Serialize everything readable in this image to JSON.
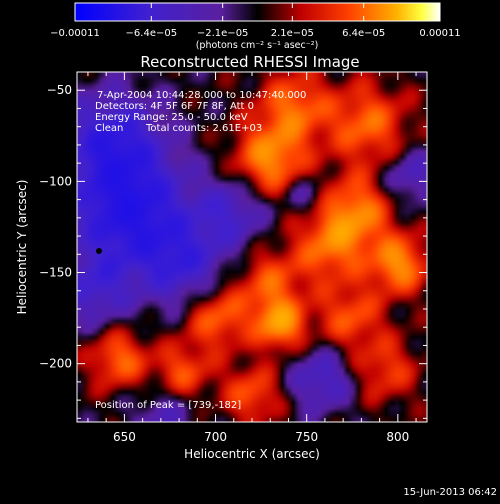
{
  "chart_data": {
    "type": "heatmap",
    "title": "Reconstructed RHESSI Image",
    "xlabel": "Heliocentric X (arcsec)",
    "ylabel": "Heliocentric Y (arcsec)",
    "xlim": [
      624,
      816
    ],
    "ylim": [
      -232,
      -40
    ],
    "x_ticks": [
      "650",
      "700",
      "750",
      "800"
    ],
    "x_tick_values": [
      650,
      700,
      750,
      800
    ],
    "y_ticks": [
      "−50",
      "−100",
      "−150",
      "−200"
    ],
    "y_tick_values": [
      -50,
      -100,
      -150,
      -200
    ],
    "colorbar": {
      "ticks": [
        "−0.00011",
        "−6.4e−05",
        "−2.1e−05",
        "2.1e−05",
        "6.4e−05",
        "0.00011"
      ],
      "tick_values": [
        -0.00011,
        -6.4e-05,
        -2.1e-05,
        2.1e-05,
        6.4e-05,
        0.00011
      ],
      "range": [
        -0.00011,
        0.00011
      ],
      "units": "(photons cm⁻² s⁻¹ asec⁻²)"
    },
    "annotations": {
      "time": "7-Apr-2004 10:44:28.000 to 10:47:40.000",
      "detectors": "Detectors: 4F 5F 6F 7F 8F, Att 0",
      "energy": "Energy Range: 25.0 - 50.0 keV",
      "algorithm": "Clean",
      "counts": "Total counts: 2.61E+03",
      "peak": "Position of Peak = [739,-182]"
    },
    "peak": {
      "x": 739,
      "y": -182
    },
    "grid": false,
    "colormap": "blue-purple-black-red-orange-yellow-white"
  },
  "footer": {
    "date": "15-Jun-2013 06:42"
  }
}
